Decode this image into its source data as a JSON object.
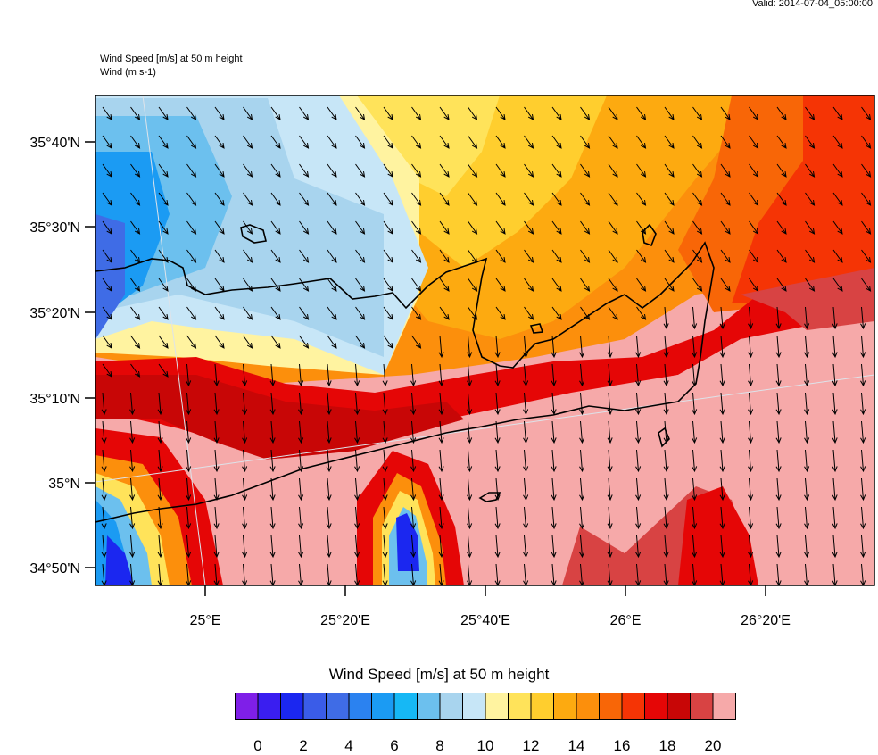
{
  "header": {
    "valid": "Valid: 2014-07-04_05:00:00",
    "title_line1": "Wind Speed [m/s] at 50 m height",
    "title_line2": "Wind   (m s-1)"
  },
  "map": {
    "lat_labels": [
      "35°40'N",
      "35°30'N",
      "35°20'N",
      "35°10'N",
      "35°N",
      "34°50'N"
    ],
    "lon_labels": [
      "25°E",
      "25°20'E",
      "25°40'E",
      "26°E",
      "26°20'E"
    ]
  },
  "colorbar": {
    "title": "Wind Speed [m/s] at 50 m height",
    "colors": [
      "#7f1fe8",
      "#3a1ef0",
      "#1b27f0",
      "#3a5ce8",
      "#3f6ce6",
      "#2b82f0",
      "#1b9bf3",
      "#16b8f5",
      "#6cc0ee",
      "#a8d4ee",
      "#c7e6f7",
      "#fff3a0",
      "#ffe35a",
      "#ffce2e",
      "#fdaa10",
      "#fc8f0c",
      "#f86607",
      "#f53405",
      "#e50606",
      "#c80606",
      "#d84343",
      "#f6a9a9"
    ],
    "tick_labels": [
      "0",
      "2",
      "4",
      "6",
      "8",
      "10",
      "12",
      "14",
      "16",
      "18",
      "20"
    ]
  }
}
